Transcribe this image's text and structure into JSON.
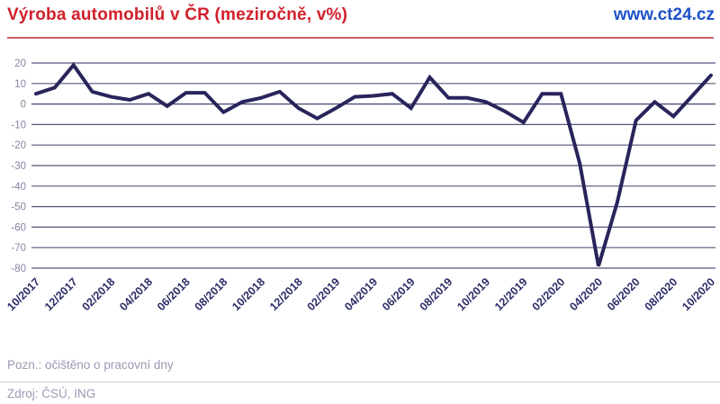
{
  "header": {
    "title": "Výroba automobilů v ČR (meziročně, v%)",
    "logo": "www.ct24.cz"
  },
  "footer": {
    "note": "Pozn.: očištěno o pracovní dny",
    "source": "Zdroj: ČSÚ, ING"
  },
  "colors": {
    "title_red": "#d1202b",
    "logo_blue": "#1d52c8",
    "line_navy": "#28255c",
    "grid": "#55557d",
    "zero_line": "#44446e",
    "y_label": "#8585a3",
    "x_label": "#2d2d68"
  },
  "chart_data": {
    "type": "line",
    "title": "Výroba automobilů v ČR (meziročně, v%)",
    "xlabel": "",
    "ylabel": "",
    "ylim": [
      -80,
      20
    ],
    "yticks": [
      20,
      10,
      0,
      -10,
      -20,
      -30,
      -40,
      -50,
      -60,
      -70,
      -80
    ],
    "grid": "on",
    "legend": "none",
    "categories": [
      "10/2017",
      "11/2017",
      "12/2017",
      "01/2018",
      "02/2018",
      "03/2018",
      "04/2018",
      "05/2018",
      "06/2018",
      "07/2018",
      "08/2018",
      "09/2018",
      "10/2018",
      "11/2018",
      "12/2018",
      "01/2019",
      "02/2019",
      "03/2019",
      "04/2019",
      "05/2019",
      "06/2019",
      "07/2019",
      "08/2019",
      "09/2019",
      "10/2019",
      "11/2019",
      "12/2019",
      "01/2020",
      "02/2020",
      "03/2020",
      "04/2020",
      "05/2020",
      "06/2020",
      "07/2020",
      "08/2020",
      "09/2020",
      "10/2020"
    ],
    "xtick_labels": [
      "10/2017",
      "12/2017",
      "02/2018",
      "04/2018",
      "06/2018",
      "08/2018",
      "10/2018",
      "12/2018",
      "02/2019",
      "04/2019",
      "06/2019",
      "08/2019",
      "10/2019",
      "12/2019",
      "02/2020",
      "04/2020",
      "06/2020",
      "08/2020",
      "10/2020"
    ],
    "xtick_every": 2,
    "series": [
      {
        "name": "Výroba automobilů meziročně v %",
        "values": [
          5,
          8,
          19,
          6,
          3.5,
          2,
          5,
          -1,
          5.5,
          5.5,
          -4,
          1,
          3,
          6,
          -2,
          -7,
          -2,
          3.5,
          4,
          5,
          -2,
          13,
          3,
          3,
          1,
          -3.5,
          -9,
          5,
          5,
          -29,
          -79,
          -48,
          -8,
          1,
          -6,
          4,
          14
        ]
      }
    ]
  }
}
